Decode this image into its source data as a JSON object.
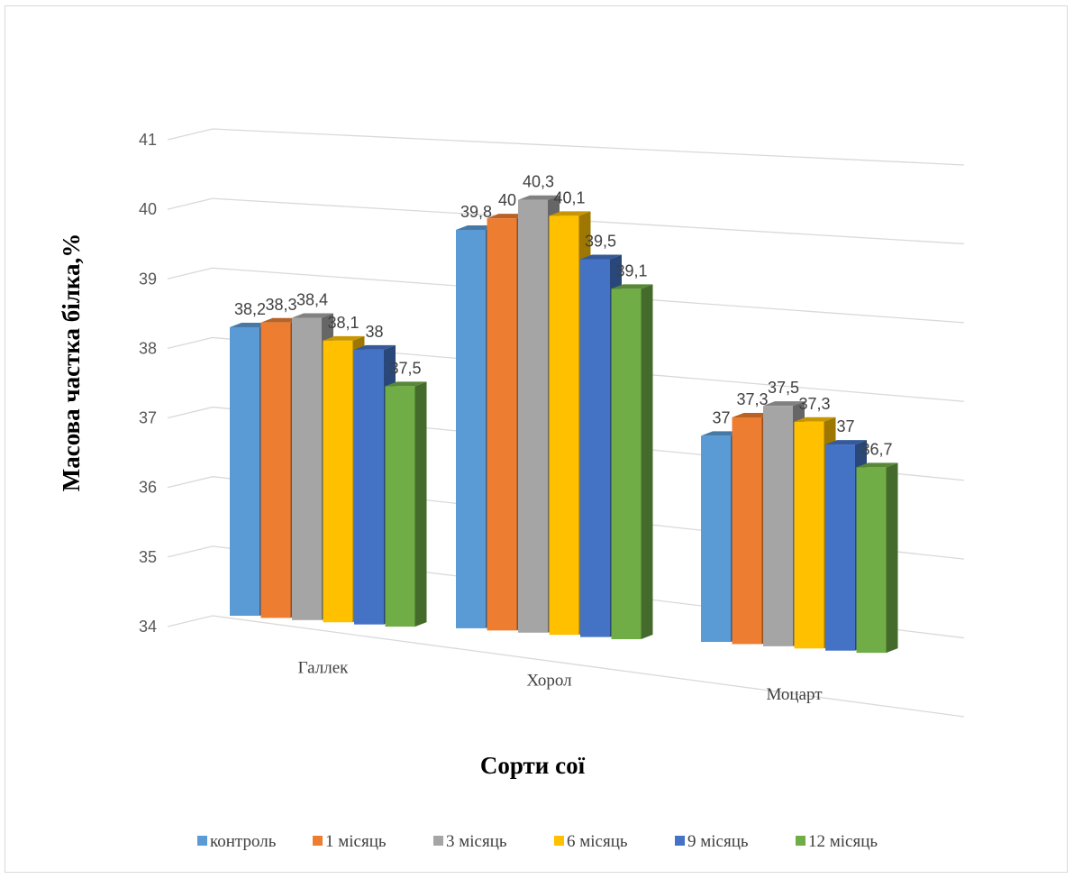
{
  "chart_data": {
    "type": "bar",
    "style": "3d-clustered-column",
    "categories": [
      "Галлек",
      "Хорол",
      "Моцарт"
    ],
    "series": [
      {
        "name": "контроль",
        "color": "#5b9bd5",
        "values": [
          38.2,
          39.8,
          37
        ]
      },
      {
        "name": "1 місяць",
        "color": "#ed7d31",
        "values": [
          38.3,
          40,
          37.3
        ]
      },
      {
        "name": "3 місяць",
        "color": "#a5a5a5",
        "values": [
          38.4,
          40.3,
          37.5
        ]
      },
      {
        "name": "6 місяць",
        "color": "#ffc000",
        "values": [
          38.1,
          40.1,
          37.3
        ]
      },
      {
        "name": "9 місяць",
        "color": "#4472c4",
        "values": [
          38,
          39.5,
          37
        ]
      },
      {
        "name": "12 місяць",
        "color": "#70ad47",
        "values": [
          37.5,
          39.1,
          36.7
        ]
      }
    ],
    "value_labels": [
      [
        "38,2",
        "39,8",
        "37"
      ],
      [
        "38,3",
        "40",
        "37,3"
      ],
      [
        "38,4",
        "40,3",
        "37,5"
      ],
      [
        "38,1",
        "40,1",
        "37,3"
      ],
      [
        "38",
        "39,5",
        "37"
      ],
      [
        "37,5",
        "39,1",
        "36,7"
      ]
    ],
    "y_ticks": [
      "34",
      "35",
      "36",
      "37",
      "38",
      "39",
      "40",
      "41"
    ],
    "ylim": [
      34,
      41
    ],
    "xlabel": "Сорти сої",
    "ylabel": "Масова частка білка,%",
    "grid": true,
    "legend_position": "bottom"
  }
}
